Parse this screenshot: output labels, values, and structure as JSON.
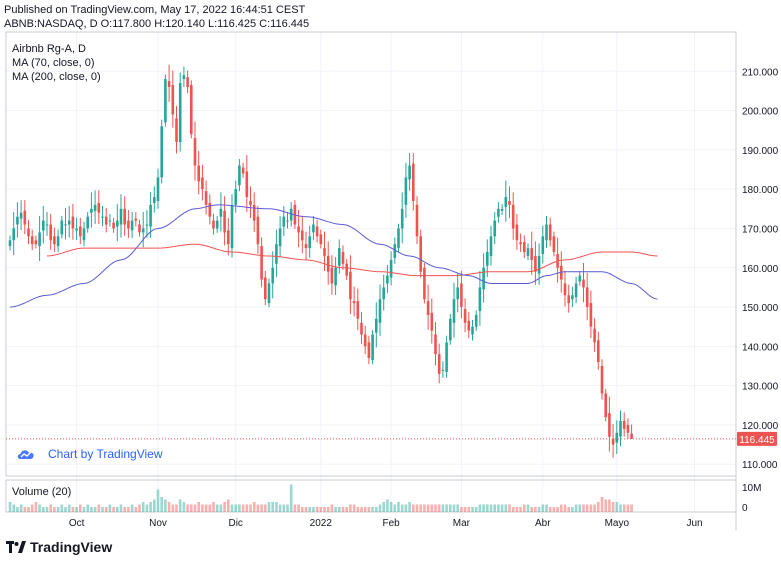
{
  "header": {
    "published": "Published on TradingView.com, May 17, 2022 16:44:51 CEST",
    "symbol_line": "ABNB:NASDAQ, D O:117.800 H:120.140 L:116.425 C:116.445"
  },
  "legend": {
    "title": "Airbnb Rg-A, D",
    "ma70": "MA (70, close, 0)",
    "ma200": "MA (200, close, 0)"
  },
  "volume_label": "Volume (20)",
  "badge": {
    "text": "Chart by TradingView"
  },
  "footer": {
    "brand": "TradingView"
  },
  "colors": {
    "up": "#26a69a",
    "down": "#ef5350",
    "ma70": "#5b5bd6",
    "ma200": "#ef5350",
    "last_price": "#ef5350",
    "axis_text": "#131722",
    "brand_blue": "#2962ff"
  },
  "chart_data": {
    "type": "candlestick",
    "symbol": "ABNB:NASDAQ",
    "interval": "D",
    "last": {
      "open": 117.8,
      "high": 120.14,
      "low": 116.425,
      "close": 116.445,
      "label": "116.445"
    },
    "ylim": [
      107,
      220
    ],
    "y_ticks": [
      110,
      120,
      130,
      140,
      150,
      160,
      170,
      180,
      190,
      200,
      210
    ],
    "y_tick_labels": [
      "110.000",
      "120.000",
      "130.000",
      "140.000",
      "150.000",
      "160.000",
      "170.000",
      "180.000",
      "190.000",
      "200.000",
      "210.000"
    ],
    "x_labels": [
      "Oct",
      "Nov",
      "Dic",
      "2022",
      "Feb",
      "Mar",
      "Abr",
      "Mayo",
      "Jun"
    ],
    "x_label_index": [
      18,
      40,
      61,
      84,
      103,
      122,
      144,
      164,
      185
    ],
    "closes": [
      167,
      170,
      173,
      174,
      171,
      168,
      166,
      166,
      169,
      172,
      171,
      167,
      166,
      168,
      172,
      171,
      172,
      170,
      170,
      168,
      170,
      173,
      175,
      176,
      174,
      173,
      171,
      172,
      170,
      172,
      175,
      171,
      170,
      172,
      172,
      169,
      170,
      171,
      176,
      178,
      183,
      196,
      208,
      206,
      199,
      192,
      207,
      209,
      206,
      194,
      186,
      182,
      180,
      176,
      173,
      170,
      172,
      175,
      169,
      166,
      176,
      180,
      186,
      184,
      178,
      176,
      172,
      166,
      157,
      152,
      156,
      160,
      166,
      170,
      173,
      172,
      175,
      171,
      169,
      167,
      165,
      168,
      171,
      168,
      166,
      163,
      159,
      156,
      160,
      165,
      161,
      158,
      152,
      151,
      147,
      143,
      140,
      137,
      143,
      147,
      152,
      155,
      158,
      162,
      166,
      170,
      175,
      183,
      186,
      177,
      168,
      159,
      152,
      148,
      144,
      138,
      133,
      134,
      141,
      147,
      152,
      155,
      150,
      146,
      144,
      145,
      148,
      155,
      160,
      164,
      168,
      172,
      175,
      175,
      178,
      176,
      170,
      167,
      166,
      164,
      165,
      162,
      159,
      163,
      168,
      171,
      167,
      164,
      160,
      157,
      153,
      151,
      153,
      156,
      158,
      155,
      150,
      145,
      141,
      136,
      128,
      122,
      117,
      115,
      118,
      121,
      119,
      118,
      116.445
    ],
    "ma70": {
      "name": "MA (70, close, 0)",
      "start_index": 0,
      "anchors": [
        [
          0,
          150
        ],
        [
          10,
          153
        ],
        [
          20,
          156
        ],
        [
          30,
          162
        ],
        [
          40,
          170
        ],
        [
          50,
          175
        ],
        [
          56,
          176
        ],
        [
          70,
          175
        ],
        [
          80,
          173
        ],
        [
          90,
          171
        ],
        [
          100,
          166
        ],
        [
          108,
          163
        ],
        [
          116,
          160
        ],
        [
          124,
          158
        ],
        [
          130,
          156
        ],
        [
          140,
          156
        ],
        [
          145,
          158
        ],
        [
          150,
          159
        ],
        [
          160,
          159
        ],
        [
          168,
          156
        ],
        [
          175,
          152
        ]
      ]
    },
    "ma200": {
      "name": "MA (200, close, 0)",
      "start_index": 10,
      "anchors": [
        [
          10,
          163
        ],
        [
          20,
          165
        ],
        [
          30,
          165
        ],
        [
          40,
          165
        ],
        [
          50,
          166
        ],
        [
          60,
          164
        ],
        [
          70,
          163
        ],
        [
          80,
          162
        ],
        [
          90,
          160
        ],
        [
          100,
          159
        ],
        [
          110,
          158
        ],
        [
          120,
          158
        ],
        [
          130,
          159
        ],
        [
          140,
          159
        ],
        [
          150,
          162
        ],
        [
          160,
          164
        ],
        [
          168,
          164
        ],
        [
          175,
          163
        ]
      ]
    },
    "volume_ticks": [
      "10M",
      "0"
    ],
    "volume_ylim": [
      0,
      12
    ],
    "volumes": [
      4,
      3,
      2,
      3,
      2,
      2,
      3,
      4,
      3,
      2,
      2,
      3,
      2,
      2,
      3,
      2,
      3,
      2,
      2,
      3,
      2,
      3,
      2,
      2,
      3,
      2,
      2,
      3,
      2,
      2,
      3,
      2,
      2,
      3,
      2,
      3,
      4,
      3,
      4,
      5,
      9,
      6,
      5,
      4,
      3,
      3,
      5,
      4,
      3,
      3,
      3,
      4,
      3,
      3,
      3,
      4,
      3,
      3,
      4,
      5,
      3,
      3,
      3,
      3,
      3,
      3,
      4,
      3,
      3,
      3,
      4,
      4,
      4,
      3,
      3,
      3,
      11,
      3,
      3,
      2,
      2,
      2,
      2,
      2,
      2,
      2,
      2,
      3,
      2,
      2,
      2,
      2,
      3,
      3,
      2,
      2,
      2,
      2,
      2,
      2,
      3,
      4,
      5,
      4,
      3,
      4,
      3,
      3,
      4,
      3,
      3,
      3,
      3,
      3,
      3,
      3,
      3,
      3,
      3,
      3,
      3,
      3,
      2,
      2,
      2,
      2,
      2,
      3,
      3,
      3,
      3,
      3,
      3,
      3,
      3,
      3,
      2,
      2,
      2,
      3,
      3,
      2,
      2,
      2,
      3,
      3,
      2,
      2,
      2,
      3,
      3,
      2,
      2,
      3,
      3,
      3,
      3,
      3,
      3,
      4,
      6,
      5,
      5,
      4,
      4,
      3,
      3,
      3,
      3
    ]
  }
}
